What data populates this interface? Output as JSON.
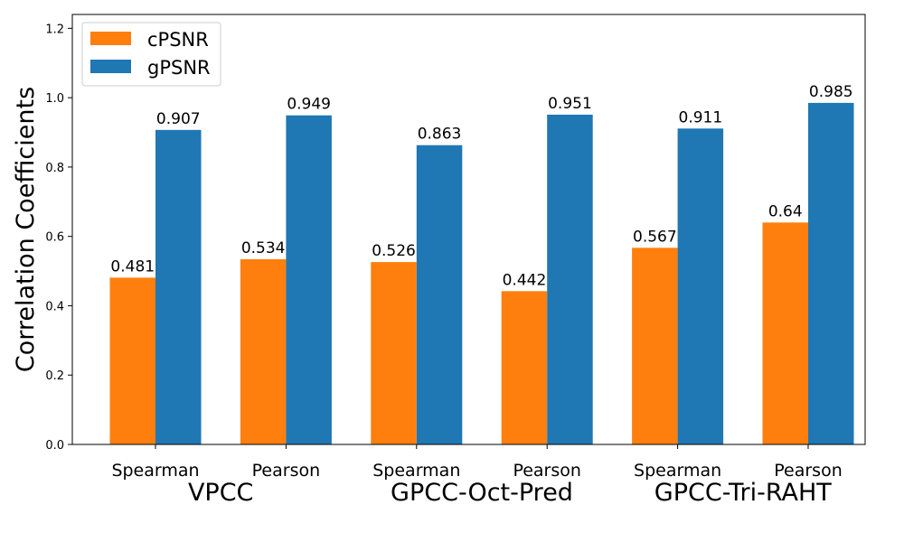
{
  "chart_data": {
    "type": "bar",
    "title": "",
    "xlabel": "",
    "ylabel": "Correlation Coefficients",
    "ylim": [
      0,
      1.24
    ],
    "yticks": [
      "0.0",
      "0.2",
      "0.4",
      "0.6",
      "0.8",
      "1.0",
      "1.2"
    ],
    "categories": [
      "Spearman",
      "Pearson",
      "Spearman",
      "Pearson",
      "Spearman",
      "Pearson"
    ],
    "groups": [
      "VPCC",
      "GPCC-Oct-Pred",
      "GPCC-Tri-RAHT"
    ],
    "grid": false,
    "legend_position": "top-left",
    "series": [
      {
        "name": "cPSNR",
        "color": "#ff7f0e",
        "values": [
          0.481,
          0.534,
          0.526,
          0.442,
          0.567,
          0.64
        ],
        "labels": [
          "0.481",
          "0.534",
          "0.526",
          "0.442",
          "0.567",
          "0.64"
        ]
      },
      {
        "name": "gPSNR",
        "color": "#1f77b4",
        "values": [
          0.907,
          0.949,
          0.863,
          0.951,
          0.911,
          0.985
        ],
        "labels": [
          "0.907",
          "0.949",
          "0.863",
          "0.951",
          "0.911",
          "0.985"
        ]
      }
    ]
  }
}
